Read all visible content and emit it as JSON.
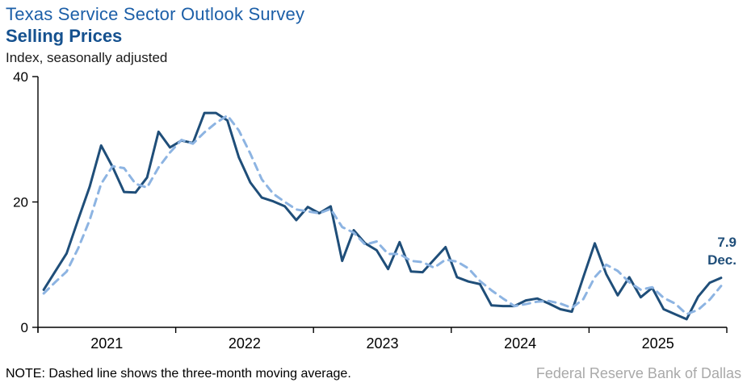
{
  "header": {
    "title": "Texas Service Sector Outlook Survey",
    "subtitle": "Selling Prices",
    "unit_label": "Index,  seasonally adjusted"
  },
  "chart_data": {
    "type": "line",
    "title": "Selling Prices",
    "ylabel": "Index, seasonally adjusted",
    "ylim": [
      0,
      40
    ],
    "yticks": [
      "0",
      "20",
      "40"
    ],
    "x_start": "2021-01",
    "x_end": "2025-12",
    "x_tick_labels": [
      "2021",
      "2022",
      "2023",
      "2024",
      "2025"
    ],
    "grid": false,
    "legend_position": "none",
    "series": [
      {
        "name": "Selling prices index",
        "style": "solid",
        "color": "#1F4E79",
        "values": [
          6.0,
          8.9,
          11.8,
          17.2,
          22.4,
          29.0,
          25.6,
          21.6,
          21.5,
          23.9,
          31.2,
          28.7,
          29.8,
          29.4,
          34.2,
          34.2,
          33.0,
          27.1,
          23.1,
          20.7,
          20.1,
          19.3,
          17.1,
          19.2,
          18.2,
          19.3,
          10.6,
          15.5,
          13.4,
          12.3,
          9.3,
          13.6,
          8.9,
          8.8,
          10.8,
          12.8,
          8.0,
          7.3,
          6.9,
          3.5,
          3.4,
          3.4,
          4.3,
          4.6,
          3.8,
          2.9,
          2.5,
          8.0,
          13.4,
          8.5,
          5.1,
          8.0,
          4.8,
          6.3,
          2.9,
          2.1,
          1.3,
          4.9,
          7.1,
          7.9
        ]
      },
      {
        "name": "Three-month moving average",
        "style": "dashed",
        "color": "#8DB4E2",
        "values": [
          5.4,
          7.2,
          8.9,
          12.6,
          17.1,
          22.9,
          25.7,
          25.4,
          22.9,
          22.3,
          25.5,
          27.9,
          29.9,
          29.3,
          31.1,
          32.6,
          33.8,
          31.4,
          27.7,
          23.6,
          21.3,
          20.0,
          18.8,
          18.5,
          18.2,
          18.9,
          16.0,
          15.1,
          13.2,
          13.7,
          11.7,
          11.7,
          10.6,
          10.4,
          9.5,
          10.8,
          10.5,
          9.4,
          7.4,
          5.9,
          4.6,
          3.4,
          3.7,
          4.1,
          4.2,
          3.8,
          3.1,
          4.5,
          8.0,
          10.0,
          9.0,
          7.2,
          6.0,
          6.4,
          4.7,
          3.8,
          2.1,
          2.8,
          4.4,
          6.6
        ]
      }
    ],
    "annotation": {
      "value": "7.9",
      "label": "Dec."
    }
  },
  "footer": {
    "note": "NOTE: Dashed line shows the three-month moving average.",
    "attribution": "Federal Reserve Bank of Dallas"
  }
}
